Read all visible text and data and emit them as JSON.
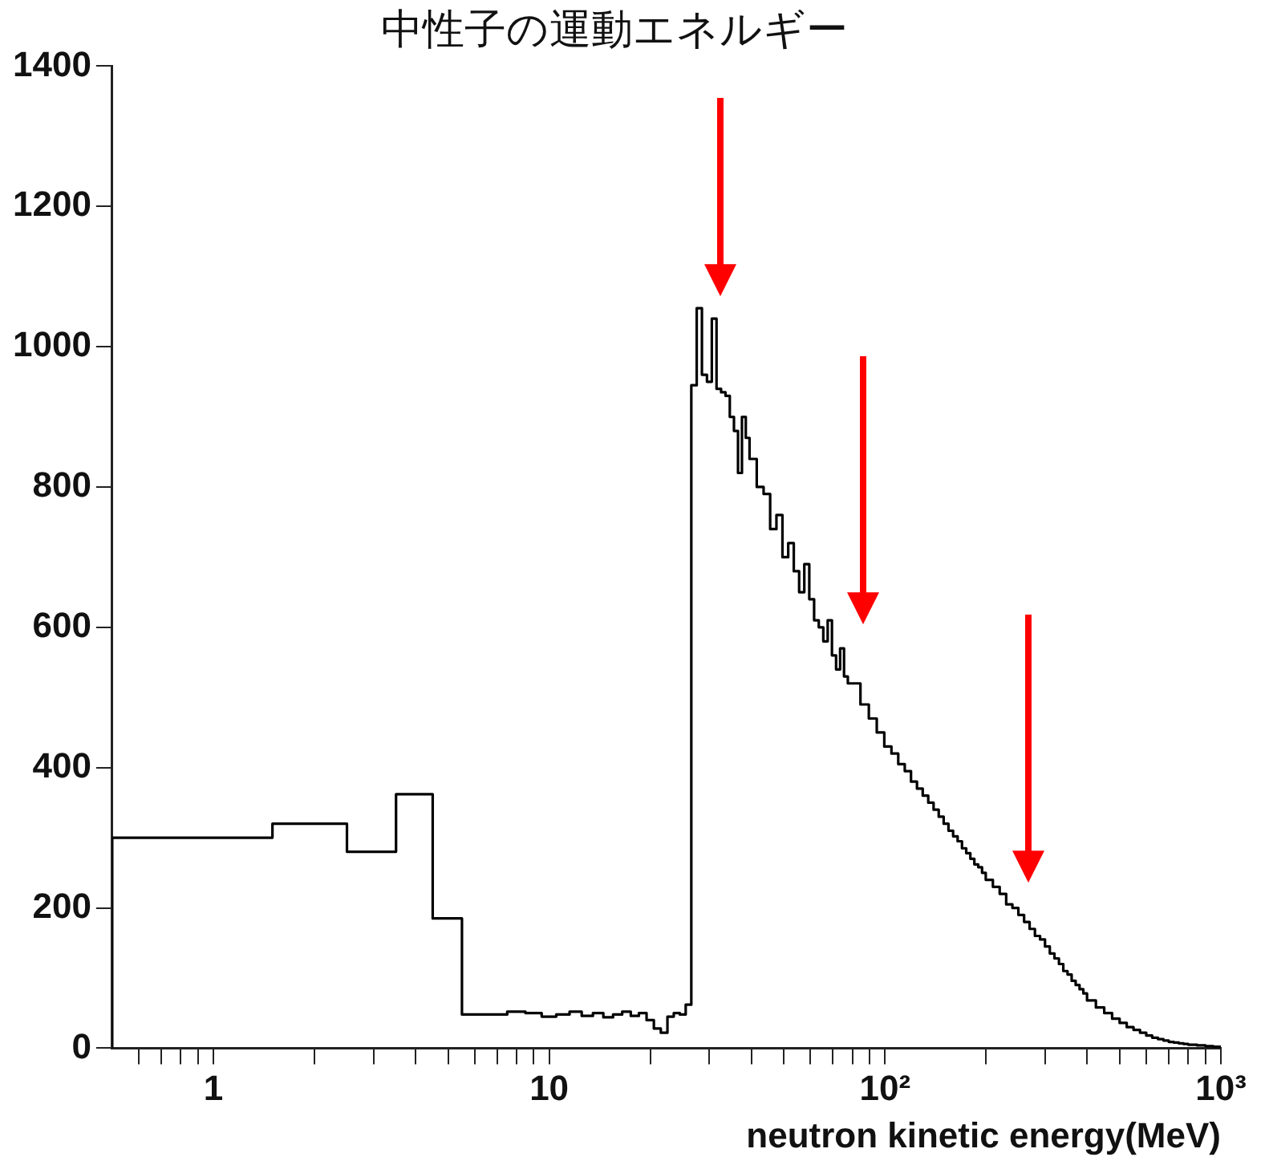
{
  "chart_data": {
    "type": "histogram",
    "title": "中性子の運動エネルギー",
    "xlabel": "neutron kinetic energy(MeV)",
    "bins": [
      0.5,
      1.5,
      2.5,
      3.5,
      4.5,
      5.5,
      6.5,
      7.5,
      8.5,
      9.5,
      10.5,
      11.5,
      12.5,
      13.5,
      14.5,
      15.5,
      16.5,
      17.5,
      18.5,
      19.5,
      20.5,
      21.5,
      22.5,
      23.5,
      24.5,
      25.5,
      26.5,
      27.5,
      28.5,
      29.5,
      30.5,
      31.5,
      32.5,
      33.5,
      34.5,
      35.5,
      36.5,
      37.5,
      38.5,
      39.5,
      41.5,
      43.5,
      45.5,
      47.5,
      49.5,
      51.5,
      53.5,
      55.5,
      57.5,
      59.5,
      61.5,
      63.5,
      65.5,
      67.5,
      69.5,
      71.5,
      73.5,
      75.5,
      77.5,
      79.5,
      84.5,
      89.5,
      94.5,
      99.5,
      104.5,
      109.5,
      114.5,
      119.5,
      124.5,
      129.5,
      134.5,
      139.5,
      144.5,
      149.5,
      154.5,
      159.5,
      164.5,
      169.5,
      174.5,
      179.5,
      184.5,
      189.5,
      194.5,
      199.5,
      209.5,
      219.5,
      229.5,
      239.5,
      249.5,
      259.5,
      269.5,
      279.5,
      289.5,
      299.5,
      309.5,
      319.5,
      329.5,
      339.5,
      349.5,
      359.5,
      369.5,
      379.5,
      389.5,
      399.5,
      424.5,
      449.5,
      474.5,
      499.5,
      524.5,
      549.5,
      574.5,
      599.5,
      624.5,
      649.5,
      674.5,
      699.5,
      724.5,
      749.5,
      774.5,
      799.5,
      824.5,
      849.5,
      874.5,
      899.5,
      924.5,
      949.5,
      974.5,
      999.5
    ],
    "values": [
      300,
      320,
      280,
      362,
      185,
      48,
      48,
      52,
      50,
      45,
      48,
      52,
      46,
      50,
      44,
      48,
      52,
      46,
      50,
      40,
      28,
      22,
      45,
      50,
      48,
      62,
      945,
      1055,
      960,
      950,
      1040,
      940,
      935,
      930,
      900,
      880,
      820,
      900,
      870,
      840,
      800,
      790,
      740,
      760,
      700,
      720,
      680,
      650,
      690,
      640,
      610,
      600,
      580,
      610,
      560,
      540,
      570,
      530,
      520,
      520,
      490,
      470,
      450,
      430,
      420,
      405,
      395,
      380,
      370,
      360,
      350,
      340,
      330,
      320,
      310,
      302,
      295,
      285,
      278,
      270,
      262,
      258,
      250,
      240,
      230,
      220,
      205,
      200,
      190,
      180,
      170,
      160,
      155,
      145,
      135,
      128,
      120,
      110,
      105,
      96,
      90,
      84,
      78,
      68,
      58,
      50,
      42,
      36,
      30,
      26,
      22,
      18,
      15,
      13,
      11,
      9,
      8,
      7,
      6,
      5,
      5,
      4,
      4,
      3,
      3,
      2,
      2
    ],
    "color": "#000000",
    "log": "x",
    "xlim": [
      0.5,
      1000
    ],
    "xticks": [
      {
        "value": 0.6,
        "label": null
      },
      {
        "value": 0.7,
        "label": null
      },
      {
        "value": 0.8,
        "label": null
      },
      {
        "value": 0.9,
        "label": null
      },
      1,
      {
        "value": 2,
        "label": null
      },
      {
        "value": 3,
        "label": null
      },
      {
        "value": 4,
        "label": null
      },
      {
        "value": 5,
        "label": null
      },
      {
        "value": 6,
        "label": null
      },
      {
        "value": 7,
        "label": null
      },
      {
        "value": 8,
        "label": null
      },
      {
        "value": 9,
        "label": null
      },
      10,
      {
        "value": 20,
        "label": null
      },
      {
        "value": 30,
        "label": null
      },
      {
        "value": 40,
        "label": null
      },
      {
        "value": 50,
        "label": null
      },
      {
        "value": 60,
        "label": null
      },
      {
        "value": 70,
        "label": null
      },
      {
        "value": 80,
        "label": null
      },
      {
        "value": 90,
        "label": null
      },
      {
        "value": 100,
        "label": "10²"
      },
      {
        "value": 200,
        "label": null
      },
      {
        "value": 300,
        "label": null
      },
      {
        "value": 400,
        "label": null
      },
      {
        "value": 500,
        "label": null
      },
      {
        "value": 600,
        "label": null
      },
      {
        "value": 700,
        "label": null
      },
      {
        "value": 800,
        "label": null
      },
      {
        "value": 900,
        "label": null
      },
      {
        "value": 1000,
        "label": "10³"
      }
    ],
    "ylim": [
      0,
      1400
    ],
    "yticks": [
      0,
      200,
      400,
      600,
      800,
      1000,
      1200,
      1400
    ],
    "grid": false,
    "legend": false
  }
}
